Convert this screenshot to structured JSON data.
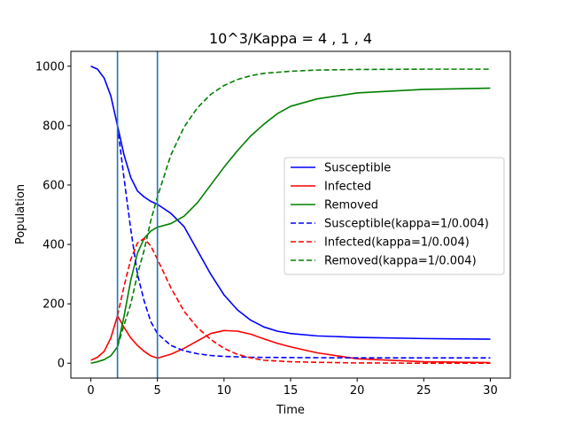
{
  "chart_data": {
    "type": "line",
    "title": "10^3/Kappa = 4 , 1 , 4",
    "xlabel": "Time",
    "ylabel": "Population",
    "xlim": [
      -1.5,
      31.5
    ],
    "ylim": [
      -50,
      1050
    ],
    "xticks": [
      0,
      5,
      10,
      15,
      20,
      25,
      30
    ],
    "yticks": [
      0,
      200,
      400,
      600,
      800,
      1000
    ],
    "grid": false,
    "legend_position": "center-right",
    "vlines": [
      {
        "x": 2,
        "color": "#1f77b4"
      },
      {
        "x": 5,
        "color": "#1f77b4"
      }
    ],
    "series": [
      {
        "name": "Susceptible",
        "color": "#0000ff",
        "dash": "solid",
        "x": [
          0,
          0.5,
          1,
          1.5,
          2,
          2.5,
          3,
          3.5,
          4,
          4.5,
          5,
          6,
          7,
          8,
          9,
          10,
          11,
          12,
          13,
          14,
          15,
          17,
          20,
          25,
          30
        ],
        "y": [
          1000,
          990,
          960,
          900,
          800,
          700,
          625,
          580,
          560,
          545,
          535,
          505,
          460,
          380,
          300,
          230,
          180,
          145,
          122,
          108,
          100,
          92,
          87,
          83,
          81
        ]
      },
      {
        "name": "Infected",
        "color": "#ff0000",
        "dash": "solid",
        "x": [
          0,
          0.5,
          1,
          1.5,
          2,
          2.5,
          3,
          3.5,
          4,
          4.5,
          5,
          6,
          7,
          8,
          9,
          10,
          11,
          12,
          13,
          14,
          15,
          17,
          20,
          25,
          30
        ],
        "y": [
          10,
          20,
          40,
          85,
          160,
          120,
          85,
          60,
          40,
          25,
          17,
          30,
          50,
          75,
          100,
          110,
          108,
          98,
          82,
          67,
          55,
          35,
          15,
          5,
          2
        ]
      },
      {
        "name": "Removed",
        "color": "#008000",
        "dash": "solid",
        "x": [
          0,
          0.5,
          1,
          1.5,
          2,
          2.5,
          3,
          3.5,
          4,
          4.5,
          5,
          6,
          7,
          8,
          9,
          10,
          11,
          12,
          13,
          14,
          15,
          17,
          20,
          25,
          30
        ],
        "y": [
          0,
          5,
          12,
          25,
          55,
          160,
          280,
          370,
          420,
          445,
          458,
          470,
          495,
          540,
          600,
          660,
          715,
          765,
          805,
          840,
          865,
          890,
          910,
          922,
          926
        ]
      },
      {
        "name": "Susceptible(kappa=1/0.004)",
        "color": "#0000ff",
        "dash": "dashed",
        "x": [
          2,
          2.5,
          3,
          3.5,
          4,
          4.5,
          5,
          6,
          7,
          8,
          9,
          10,
          12,
          15,
          20,
          25,
          30
        ],
        "y": [
          800,
          620,
          450,
          300,
          210,
          140,
          100,
          60,
          42,
          32,
          26,
          23,
          20,
          19,
          18,
          18,
          18
        ]
      },
      {
        "name": "Infected(kappa=1/0.004)",
        "color": "#ff0000",
        "dash": "dashed",
        "x": [
          2,
          2.5,
          3,
          3.5,
          4,
          4.5,
          5,
          6,
          7,
          8,
          9,
          10,
          11,
          12,
          13,
          15,
          17,
          20,
          25,
          30
        ],
        "y": [
          160,
          260,
          350,
          405,
          420,
          395,
          350,
          255,
          175,
          120,
          80,
          50,
          30,
          18,
          10,
          5,
          3,
          1,
          0,
          0
        ]
      },
      {
        "name": "Removed(kappa=1/0.004)",
        "color": "#008000",
        "dash": "dashed",
        "x": [
          2,
          2.5,
          3,
          3.5,
          4,
          4.5,
          5,
          6,
          7,
          8,
          9,
          10,
          11,
          12,
          13,
          15,
          17,
          20,
          25,
          30
        ],
        "y": [
          55,
          130,
          200,
          300,
          380,
          480,
          560,
          700,
          795,
          860,
          905,
          935,
          955,
          968,
          976,
          983,
          987,
          989,
          990,
          990
        ]
      }
    ]
  }
}
